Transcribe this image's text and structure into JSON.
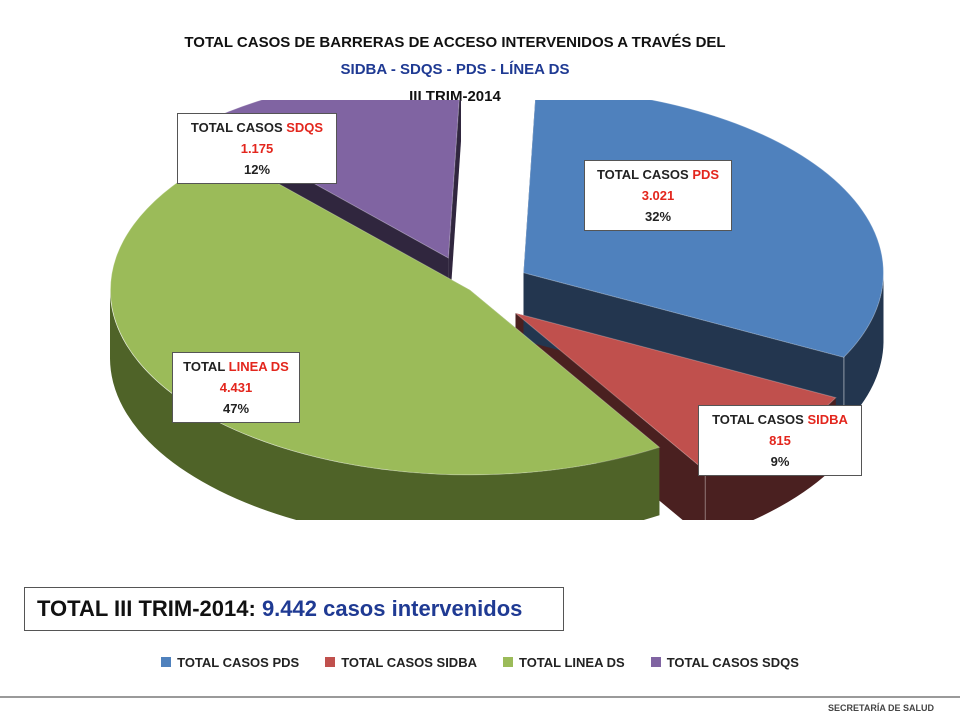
{
  "title": {
    "line1": "TOTAL  CASOS DE BARRERAS DE ACCESO INTERVENIDOS A TRAVÉS DEL",
    "line2": "SIDBA - SDQS - PDS - LÍNEA DS",
    "line3": "III TRIM-2014"
  },
  "chart_data": {
    "type": "pie",
    "title": "TOTAL  CASOS DE BARRERAS DE ACCESO INTERVENIDOS A TRAVÉS DEL SIDBA - SDQS - PDS - LÍNEA DS III TRIM-2014",
    "slices": [
      {
        "name": "TOTAL CASOS PDS",
        "label_prefix": "TOTAL CASOS",
        "label_key": "PDS",
        "value_text": "3.021",
        "value": 3021,
        "percent": "32%",
        "color": "#4f81bd",
        "side_color": "#23364f",
        "exploded": true
      },
      {
        "name": "TOTAL CASOS SIDBA",
        "label_prefix": "TOTAL CASOS",
        "label_key": "SIDBA",
        "value_text": "815",
        "value": 815,
        "percent": "9%",
        "color": "#c0504d",
        "side_color": "#4a2020",
        "exploded": true
      },
      {
        "name": "TOTAL LINEA DS",
        "label_prefix": "TOTAL",
        "label_key": "LINEA DS",
        "value_text": "4.431",
        "value": 4431,
        "percent": "47%",
        "color": "#9bbb59",
        "side_color": "#4f6328",
        "exploded": false
      },
      {
        "name": "TOTAL CASOS SDQS",
        "label_prefix": "TOTAL CASOS",
        "label_key": "SDQS",
        "value_text": "1.175",
        "value": 1175,
        "percent": "12%",
        "color": "#8064a2",
        "side_color": "#30263e",
        "exploded": true
      }
    ],
    "legend_position": "bottom"
  },
  "total": {
    "label": "TOTAL III TRIM-2014:",
    "value": "9.442 casos intervenidos"
  },
  "footer": "SECRETARÍA DE SALUD"
}
